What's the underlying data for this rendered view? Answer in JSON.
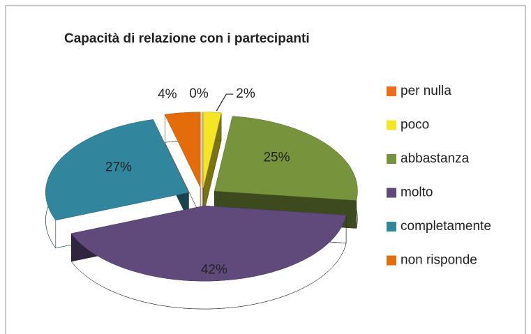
{
  "chart_data": {
    "type": "pie",
    "title": "Capacità di relazione con i partecipanti",
    "categories": [
      "per nulla",
      "poco",
      "abbastanza",
      "molto",
      "completamente",
      "non risponde"
    ],
    "values": [
      0,
      2,
      25,
      42,
      27,
      4
    ],
    "value_labels": [
      "0%",
      "2%",
      "25%",
      "42%",
      "27%",
      "4%"
    ],
    "colors": [
      "#f26a1b",
      "#f5e625",
      "#77933c",
      "#604a7b",
      "#31859c",
      "#e46c0a"
    ],
    "legend": "right"
  }
}
